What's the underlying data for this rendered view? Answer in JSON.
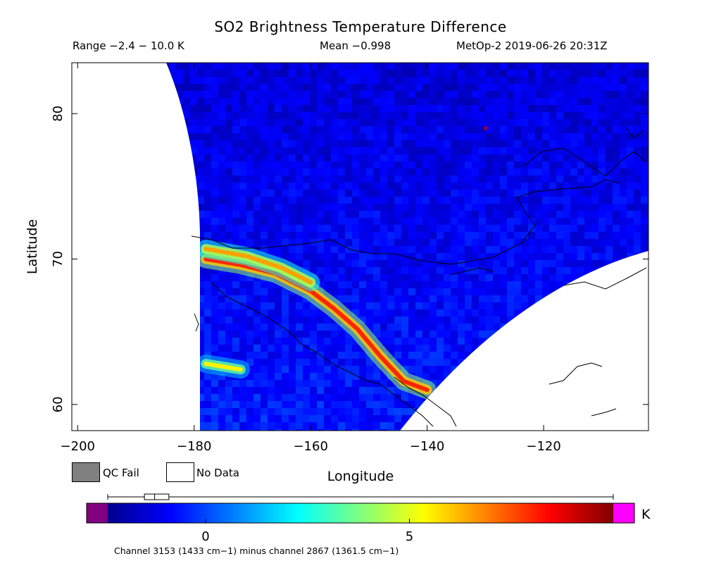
{
  "header": {
    "title": "SO2 Brightness Temperature Difference",
    "range_text": "Range −2.4 − 10.0 K",
    "mean_text": "Mean −0.998",
    "satellite_time": "MetOp-2 2019-06-26 20:31Z"
  },
  "legend": {
    "qc_fail_label": "QC Fail",
    "no_data_label": "No Data",
    "qc_fail_color": "#808080",
    "no_data_color": "#ffffff"
  },
  "colorbar": {
    "unit": "K",
    "tick_labels": [
      "0",
      "5"
    ],
    "tick_values": [
      0,
      5
    ],
    "vmin": -2.4,
    "vmax": 10.0,
    "underflow_color": "#800080",
    "overflow_color": "#ff00ff",
    "colormap": [
      "#00008f",
      "#0000ff",
      "#0080ff",
      "#00ffff",
      "#80ff80",
      "#ffff00",
      "#ff8000",
      "#ff0000",
      "#800000"
    ],
    "box_summary": {
      "min": -2.4,
      "q1": -1.5,
      "median": -1.25,
      "q3": -0.9,
      "max": 10.0
    }
  },
  "footer": "Channel 3153 (1433 cm−1) minus channel 2867 (1361.5 cm−1)",
  "chart_data": {
    "type": "heatmap",
    "title": "SO2 Brightness Temperature Difference",
    "xlabel": "Longitude",
    "ylabel": "Latitude",
    "xlim": [
      -201,
      -102
    ],
    "ylim": [
      58.2,
      83.5
    ],
    "x_ticks": [
      -200,
      -180,
      -160,
      -140,
      -120
    ],
    "x_tick_labels": [
      "−200",
      "−180",
      "−160",
      "−140",
      "−120"
    ],
    "y_ticks": [
      60,
      70,
      80
    ],
    "y_tick_labels": [
      "60",
      "70",
      "80"
    ],
    "background_value_K": -1.0,
    "features": [
      {
        "name": "SO2 plume band",
        "points": [
          [
            -178,
            70.0
          ],
          [
            -172,
            69.6
          ],
          [
            -166,
            69.0
          ],
          [
            -160,
            67.8
          ],
          [
            -156,
            66.6
          ],
          [
            -152,
            65.2
          ],
          [
            -148,
            63.3
          ],
          [
            -144,
            61.6
          ],
          [
            -140,
            61.0
          ]
        ],
        "value_K": 8.0
      },
      {
        "name": "SO2 plume upper edge",
        "points": [
          [
            -178,
            70.7
          ],
          [
            -171,
            70.2
          ],
          [
            -165,
            69.4
          ],
          [
            -160,
            68.4
          ]
        ],
        "value_K": 6.5
      },
      {
        "name": "SO2 patch south",
        "points": [
          [
            -178,
            62.8
          ],
          [
            -175,
            62.6
          ],
          [
            -172,
            62.4
          ]
        ],
        "value_K": 5.5
      }
    ]
  }
}
